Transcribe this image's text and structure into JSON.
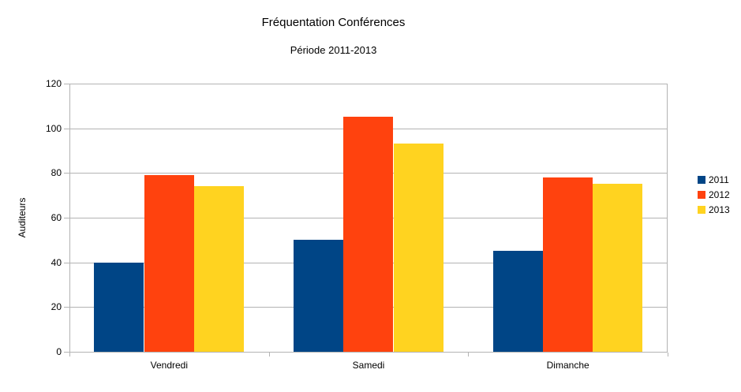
{
  "chart_data": {
    "type": "bar",
    "title": "Fréquentation Conférences",
    "subtitle": "Période 2011-2013",
    "xlabel": "",
    "ylabel": "Auditeurs",
    "categories": [
      "Vendredi",
      "Samedi",
      "Dimanche"
    ],
    "series": [
      {
        "name": "2011",
        "color": "#004586",
        "values": [
          40,
          50,
          45
        ]
      },
      {
        "name": "2012",
        "color": "#FF420E",
        "values": [
          79,
          105,
          78
        ]
      },
      {
        "name": "2013",
        "color": "#FFD320",
        "values": [
          74,
          93,
          75
        ]
      }
    ],
    "ylim": [
      0,
      120
    ],
    "ytick_step": 20,
    "yticks": [
      0,
      20,
      40,
      60,
      80,
      100,
      120
    ],
    "grid": "horizontal",
    "legend_position": "right",
    "legend_entries": [
      "2011",
      "2012",
      "2013"
    ],
    "colors": {
      "grid": "#B3B3B3",
      "axis": "#B3B3B3",
      "text": "#000000",
      "background": "#FFFFFF"
    }
  }
}
